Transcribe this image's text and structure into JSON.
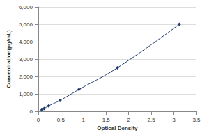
{
  "chart_data": {
    "type": "line",
    "x_label": "Optical Density",
    "y_label": "Concentration(pg/mL)",
    "x": [
      0.08,
      0.13,
      0.23,
      0.48,
      0.9,
      1.75,
      3.12
    ],
    "values": [
      78,
      156,
      312,
      625,
      1250,
      2500,
      5000
    ],
    "color": "#1f3a6e",
    "marker": "diamond",
    "xlim": [
      0,
      3.5
    ],
    "xticks": [
      0,
      0.5,
      1,
      1.5,
      2,
      2.5,
      3,
      3.5
    ],
    "ylim": [
      0,
      6000
    ],
    "yticks": [
      0,
      1000,
      2000,
      3000,
      4000,
      5000,
      6000
    ],
    "grid": true
  }
}
